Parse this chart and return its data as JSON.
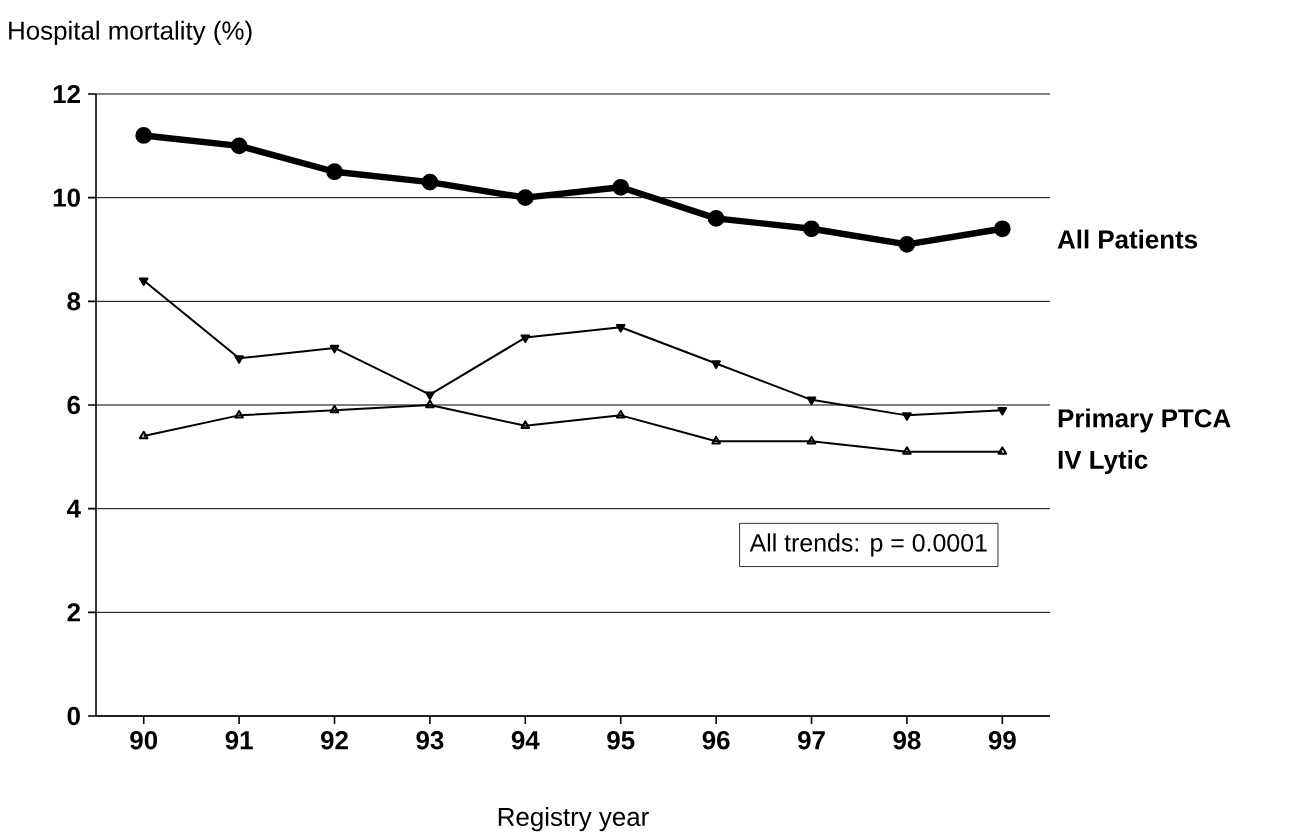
{
  "chart_data": {
    "type": "line",
    "xlabel": "Registry year",
    "ylabel": "Hospital mortality (%)",
    "categories": [
      "90",
      "91",
      "92",
      "93",
      "94",
      "95",
      "96",
      "97",
      "98",
      "99"
    ],
    "ylim": [
      0,
      12
    ],
    "yticks": [
      0,
      2,
      4,
      6,
      8,
      10,
      12
    ],
    "grid": "y",
    "legend": false,
    "series": [
      {
        "name": "All Patients",
        "color": "#000000",
        "marker": "circle",
        "values": [
          11.2,
          11.0,
          10.5,
          10.3,
          10.0,
          10.2,
          9.6,
          9.4,
          9.1,
          9.4
        ]
      },
      {
        "name": "Primary PTCA",
        "color": "#000000",
        "marker": "triangle",
        "values": [
          8.4,
          6.9,
          7.1,
          6.2,
          7.3,
          7.5,
          6.8,
          6.1,
          5.8,
          5.9
        ]
      },
      {
        "name": "IV Lytic",
        "color": "#000000",
        "marker": "triangle",
        "values": [
          5.4,
          5.8,
          5.9,
          6.0,
          5.6,
          5.8,
          5.3,
          5.3,
          5.1,
          5.1
        ]
      }
    ],
    "annotations": [
      "All trends: p = 0.0001"
    ]
  }
}
